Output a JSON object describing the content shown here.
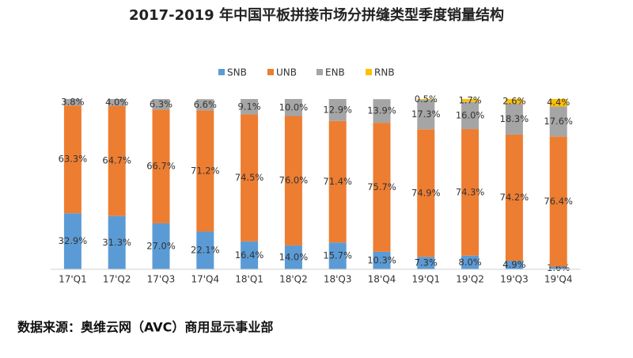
{
  "chart_data": {
    "type": "stacked-bar",
    "title": "2017-2019 年中国平板拼接市场分拼缝类型季度销量结构",
    "source": "数据来源：奥维云网（AVC）商用显示事业部",
    "categories": [
      "17'Q1",
      "17'Q2",
      "17'Q3",
      "17'Q4",
      "18'Q1",
      "18'Q2",
      "18'Q3",
      "18'Q4",
      "19'Q1",
      "19'Q2",
      "19'Q3",
      "19'Q4"
    ],
    "series": [
      {
        "name": "SNB",
        "color": "#5b9bd5",
        "values": [
          32.9,
          31.3,
          27,
          22.1,
          16.4,
          14,
          15.7,
          10.3,
          7.3,
          8,
          4.9,
          1.6
        ],
        "value_labels": [
          "32.9%",
          "31.3%",
          "27.0%",
          "22.1%",
          "16.4%",
          "14.0%",
          "15.7%",
          "10.3%",
          "7.3%",
          "8.0%",
          "4.9%",
          "1.6%"
        ]
      },
      {
        "name": "UNB",
        "color": "#ed7d31",
        "values": [
          63.3,
          64.7,
          66.7,
          71.2,
          74.5,
          76,
          71.4,
          75.7,
          74.9,
          74.3,
          74.2,
          76.4
        ],
        "value_labels": [
          "63.3%",
          "64.7%",
          "66.7%",
          "71.2%",
          "74.5%",
          "76.0%",
          "71.4%",
          "75.7%",
          "74.9%",
          "74.3%",
          "74.2%",
          "76.4%"
        ]
      },
      {
        "name": "ENB",
        "color": "#a5a5a5",
        "values": [
          3.8,
          4,
          6.3,
          6.6,
          9.1,
          10,
          12.9,
          13.9,
          17.3,
          16,
          18.3,
          17.6
        ],
        "value_labels": [
          "3.8%",
          "4.0%",
          "6.3%",
          "6.6%",
          "9.1%",
          "10.0%",
          "12.9%",
          "13.9%",
          "17.3%",
          "16.0%",
          "18.3%",
          "17.6%"
        ]
      },
      {
        "name": "RNB",
        "color": "#ffc000",
        "values": [
          null,
          null,
          null,
          null,
          null,
          null,
          null,
          null,
          0.5,
          1.7,
          2.6,
          4.4
        ],
        "value_labels": [
          null,
          null,
          null,
          null,
          null,
          null,
          null,
          null,
          "0.5%",
          "1.7%",
          "2.6%",
          "4.4%"
        ]
      }
    ],
    "legend": "top"
  }
}
